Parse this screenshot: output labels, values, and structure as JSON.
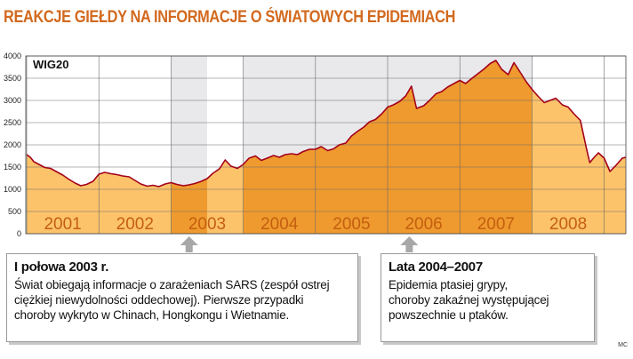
{
  "chart_data": {
    "type": "area",
    "title": "REAKCJE GIEŁDY NA INFORMACJE O ŚWIATOWYCH EPIDEMIACH",
    "series_name": "WIG20",
    "ylim": [
      0,
      4000
    ],
    "yticks": [
      0,
      500,
      1000,
      1500,
      2000,
      2500,
      3000,
      3500,
      4000
    ],
    "x_period": [
      2001,
      2009
    ],
    "year_labels": [
      "2001",
      "2002",
      "2003",
      "2004",
      "2005",
      "2006",
      "2007",
      "2008"
    ],
    "highlighted_periods": [
      {
        "from": 2003.0,
        "to": 2003.5,
        "label": "I połowa 2003 r."
      },
      {
        "from": 2004.0,
        "to": 2008.0,
        "label": "Lata 2004–2007"
      }
    ],
    "points": [
      [
        2001.0,
        1780
      ],
      [
        2001.05,
        1720
      ],
      [
        2001.1,
        1620
      ],
      [
        2001.17,
        1560
      ],
      [
        2001.25,
        1490
      ],
      [
        2001.33,
        1470
      ],
      [
        2001.42,
        1390
      ],
      [
        2001.5,
        1320
      ],
      [
        2001.58,
        1230
      ],
      [
        2001.67,
        1140
      ],
      [
        2001.75,
        1080
      ],
      [
        2001.83,
        1110
      ],
      [
        2001.92,
        1180
      ],
      [
        2002.0,
        1340
      ],
      [
        2002.08,
        1380
      ],
      [
        2002.17,
        1350
      ],
      [
        2002.25,
        1330
      ],
      [
        2002.33,
        1300
      ],
      [
        2002.42,
        1280
      ],
      [
        2002.5,
        1200
      ],
      [
        2002.58,
        1120
      ],
      [
        2002.67,
        1070
      ],
      [
        2002.75,
        1090
      ],
      [
        2002.83,
        1060
      ],
      [
        2002.92,
        1120
      ],
      [
        2003.0,
        1150
      ],
      [
        2003.08,
        1110
      ],
      [
        2003.17,
        1080
      ],
      [
        2003.25,
        1100
      ],
      [
        2003.33,
        1130
      ],
      [
        2003.42,
        1180
      ],
      [
        2003.5,
        1240
      ],
      [
        2003.58,
        1360
      ],
      [
        2003.67,
        1460
      ],
      [
        2003.75,
        1660
      ],
      [
        2003.83,
        1520
      ],
      [
        2003.92,
        1470
      ],
      [
        2004.0,
        1560
      ],
      [
        2004.08,
        1700
      ],
      [
        2004.17,
        1750
      ],
      [
        2004.25,
        1650
      ],
      [
        2004.33,
        1700
      ],
      [
        2004.42,
        1760
      ],
      [
        2004.5,
        1720
      ],
      [
        2004.58,
        1780
      ],
      [
        2004.67,
        1800
      ],
      [
        2004.75,
        1780
      ],
      [
        2004.83,
        1850
      ],
      [
        2004.92,
        1900
      ],
      [
        2005.0,
        1900
      ],
      [
        2005.08,
        1960
      ],
      [
        2005.17,
        1870
      ],
      [
        2005.25,
        1910
      ],
      [
        2005.33,
        2000
      ],
      [
        2005.42,
        2040
      ],
      [
        2005.5,
        2200
      ],
      [
        2005.58,
        2300
      ],
      [
        2005.67,
        2400
      ],
      [
        2005.75,
        2520
      ],
      [
        2005.83,
        2570
      ],
      [
        2005.92,
        2700
      ],
      [
        2006.0,
        2850
      ],
      [
        2006.08,
        2900
      ],
      [
        2006.17,
        2980
      ],
      [
        2006.25,
        3100
      ],
      [
        2006.33,
        3320
      ],
      [
        2006.4,
        2820
      ],
      [
        2006.5,
        2880
      ],
      [
        2006.58,
        3000
      ],
      [
        2006.67,
        3150
      ],
      [
        2006.75,
        3200
      ],
      [
        2006.83,
        3300
      ],
      [
        2006.92,
        3380
      ],
      [
        2007.0,
        3450
      ],
      [
        2007.08,
        3380
      ],
      [
        2007.17,
        3500
      ],
      [
        2007.25,
        3600
      ],
      [
        2007.33,
        3700
      ],
      [
        2007.42,
        3830
      ],
      [
        2007.5,
        3900
      ],
      [
        2007.58,
        3700
      ],
      [
        2007.67,
        3580
      ],
      [
        2007.75,
        3850
      ],
      [
        2007.83,
        3650
      ],
      [
        2007.92,
        3420
      ],
      [
        2008.0,
        3250
      ],
      [
        2008.08,
        3100
      ],
      [
        2008.17,
        2950
      ],
      [
        2008.25,
        3000
      ],
      [
        2008.33,
        3050
      ],
      [
        2008.42,
        2900
      ],
      [
        2008.5,
        2850
      ],
      [
        2008.58,
        2700
      ],
      [
        2008.67,
        2550
      ],
      [
        2008.75,
        1950
      ],
      [
        2008.8,
        1600
      ],
      [
        2008.85,
        1700
      ],
      [
        2008.92,
        1820
      ],
      [
        2009.0,
        1700
      ],
      [
        2009.08,
        1400
      ],
      [
        2009.17,
        1550
      ],
      [
        2009.25,
        1700
      ],
      [
        2009.3,
        1720
      ]
    ]
  },
  "annotations": [
    {
      "heading": "I połowa 2003 r.",
      "lines": [
        "Świat obiegają informacje o zarażeniach SARS (zespół ostrej",
        "ciężkiej niewydolności oddechowej). Pierwsze przypadki",
        "choroby wykryto w Chinach, Hongkongu i Wietnamie."
      ]
    },
    {
      "heading": "Lata 2004–2007",
      "lines": [
        "Epidemia ptasiej grypy,",
        "choroby zakaźnej występującej",
        "powszechnie u ptaków."
      ]
    }
  ],
  "credit": "MC",
  "colors": {
    "title": "#d2691e",
    "line": "#a3001b",
    "area_light": "#fcc36a",
    "area_dark": "#ef9a2e",
    "grey_band": "#e9e9ec",
    "year_label": "#c45f10",
    "arrow": "#a8a8a8"
  }
}
